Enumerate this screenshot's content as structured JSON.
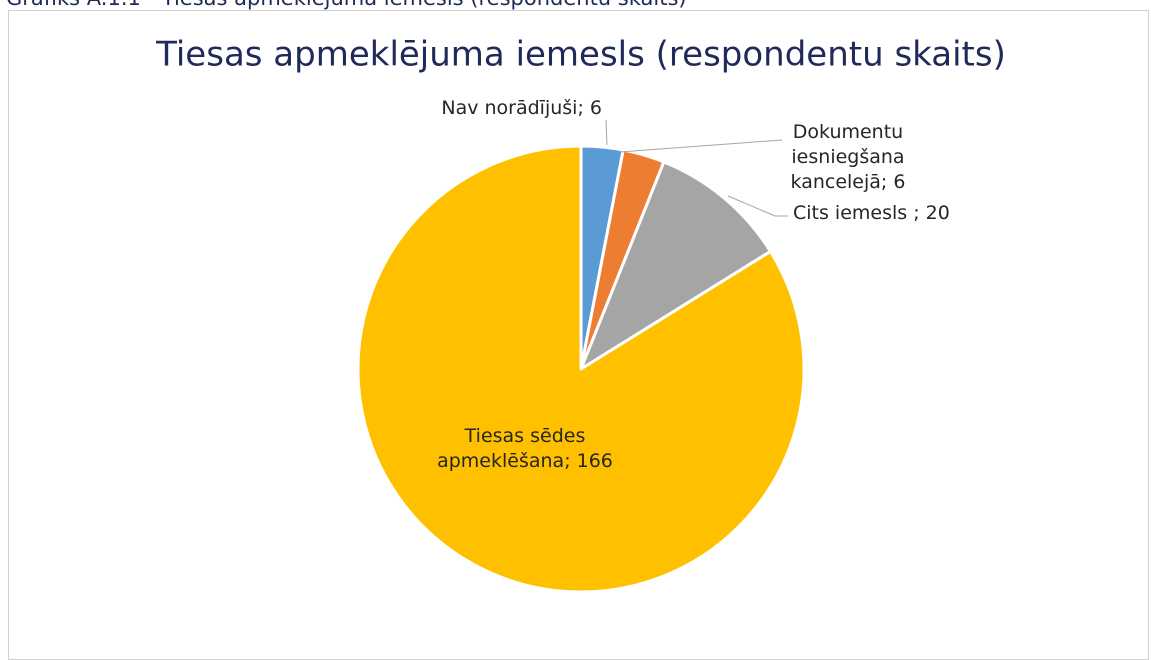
{
  "caption": "Grafiks A.1.1 - Tiesas apmeklējuma iemesls (respondentu skaits)",
  "chart_data": {
    "type": "pie",
    "title": "Tiesas apmeklējuma iemesls (respondentu skaits)",
    "categories": [
      "Nav norādījuši",
      "Dokumentu iesniegšana kancelejā",
      "Cits iemesls",
      "Tiesas sēdes apmeklēšana"
    ],
    "values": [
      6,
      6,
      20,
      166
    ],
    "value_labels": [
      "Nav norādījuši; 6",
      "Dokumentu iesniegšana kancelejā; 6",
      "Cits iemesls ; 20",
      "Tiesas sēdes apmeklēšana; 166"
    ],
    "colors": [
      "#5b9bd5",
      "#ed7d31",
      "#a5a5a5",
      "#ffc000"
    ]
  }
}
